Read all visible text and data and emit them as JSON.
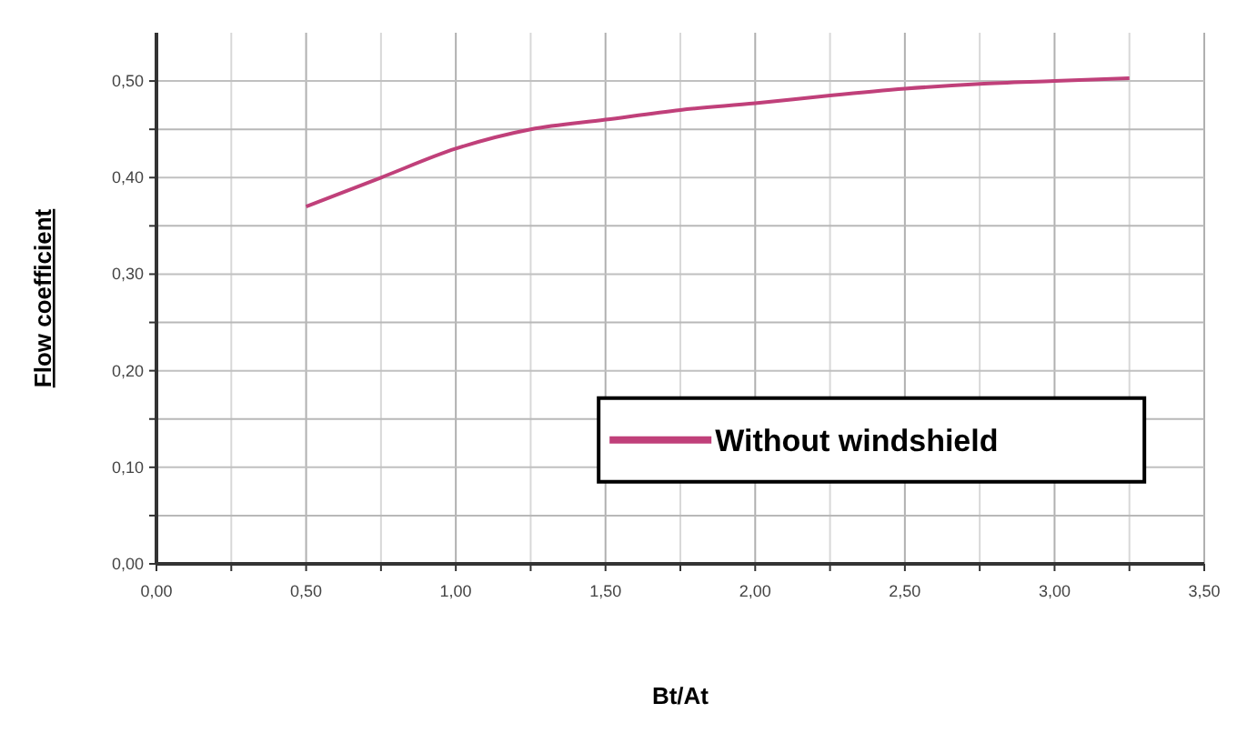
{
  "chart_data": {
    "type": "line",
    "xlabel": "Bt/At",
    "ylabel": "Flow coefficient",
    "x": [
      0.5,
      0.75,
      1.0,
      1.25,
      1.5,
      1.75,
      2.0,
      2.25,
      2.5,
      2.75,
      3.0,
      3.25
    ],
    "series": [
      {
        "name": "Without windshield",
        "color": "#c0407a",
        "values": [
          0.37,
          0.4,
          0.43,
          0.45,
          0.46,
          0.47,
          0.477,
          0.485,
          0.492,
          0.497,
          0.5,
          0.503
        ]
      }
    ],
    "xlim": [
      0,
      3.5
    ],
    "ylim": [
      0,
      0.55
    ],
    "xticks": [
      {
        "value": 0,
        "label": "0,00"
      },
      {
        "value": 0.25,
        "label": null
      },
      {
        "value": 0.5,
        "label": "0,50"
      },
      {
        "value": 0.75,
        "label": null
      },
      {
        "value": 1,
        "label": "1,00"
      },
      {
        "value": 1.25,
        "label": null
      },
      {
        "value": 1.5,
        "label": "1,50"
      },
      {
        "value": 1.75,
        "label": null
      },
      {
        "value": 2,
        "label": "2,00"
      },
      {
        "value": 2.25,
        "label": null
      },
      {
        "value": 2.5,
        "label": "2,50"
      },
      {
        "value": 2.75,
        "label": null
      },
      {
        "value": 3,
        "label": "3,00"
      },
      {
        "value": 3.25,
        "label": null
      },
      {
        "value": 3.5,
        "label": "3,50"
      }
    ],
    "yticks": [
      {
        "value": 0,
        "label": "0,00"
      },
      {
        "value": 0.05,
        "label": null
      },
      {
        "value": 0.1,
        "label": "0,10"
      },
      {
        "value": 0.15,
        "label": null
      },
      {
        "value": 0.2,
        "label": "0,20"
      },
      {
        "value": 0.25,
        "label": null
      },
      {
        "value": 0.3,
        "label": "0,30"
      },
      {
        "value": 0.35,
        "label": null
      },
      {
        "value": 0.4,
        "label": "0,40"
      },
      {
        "value": 0.45,
        "label": null
      },
      {
        "value": 0.5,
        "label": "0,50"
      }
    ],
    "grid": true,
    "legend": "bottom right",
    "marker": "none",
    "line_style": "solid"
  }
}
